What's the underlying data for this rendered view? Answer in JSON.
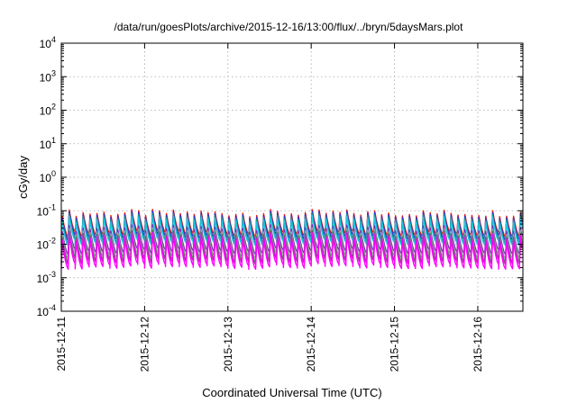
{
  "chart_data": {
    "type": "line",
    "title": "/data/run/goesPlots/archive/2015-12-16/13:00/flux/../bryn/5daysMars.plot",
    "xlabel": "Coordinated Universal Time (UTC)",
    "ylabel": "cGy/day",
    "y_scale": "log",
    "ylim": [
      0.0001,
      10000
    ],
    "y_ticks": [
      {
        "base": "10",
        "exp": "4",
        "value": 10000
      },
      {
        "base": "10",
        "exp": "3",
        "value": 1000
      },
      {
        "base": "10",
        "exp": "2",
        "value": 100
      },
      {
        "base": "10",
        "exp": "1",
        "value": 10
      },
      {
        "base": "10",
        "exp": "0",
        "value": 1
      },
      {
        "base": "10",
        "exp": "-1",
        "value": 0.1
      },
      {
        "base": "10",
        "exp": "-2",
        "value": 0.01
      },
      {
        "base": "10",
        "exp": "-3",
        "value": 0.001
      },
      {
        "base": "10",
        "exp": "-4",
        "value": 0.0001
      }
    ],
    "xlim": [
      "2015-12-11T00:00",
      "2015-12-16T13:00"
    ],
    "x_ticks": [
      "2015-12-11",
      "2015-12-12",
      "2015-12-13",
      "2015-12-14",
      "2015-12-15",
      "2015-12-16"
    ],
    "grid": true,
    "pattern": "sawtooth, ~12 cycles per day, each cycle rising sharply then decaying",
    "series": [
      {
        "color": "#e51e10",
        "peak": 0.085,
        "trough": 0.02
      },
      {
        "color": "#2b2bd6",
        "peak": 0.075,
        "trough": 0.016
      },
      {
        "color": "#1f8f8f",
        "peak": 0.065,
        "trough": 0.013
      },
      {
        "color": "#18c8e0",
        "peak": 0.055,
        "trough": 0.011
      },
      {
        "color": "#7b2fbe",
        "peak": 0.03,
        "trough": 0.006
      },
      {
        "color": "#a0a0a0",
        "peak": 0.024,
        "trough": 0.0045
      },
      {
        "color": "#2e8b3a",
        "peak": 0.02,
        "trough": 0.0035
      },
      {
        "color": "#d020c8",
        "peak": 0.018,
        "trough": 0.003
      },
      {
        "color": "#ff00ff",
        "peak": 0.015,
        "trough": 0.0022
      }
    ]
  }
}
